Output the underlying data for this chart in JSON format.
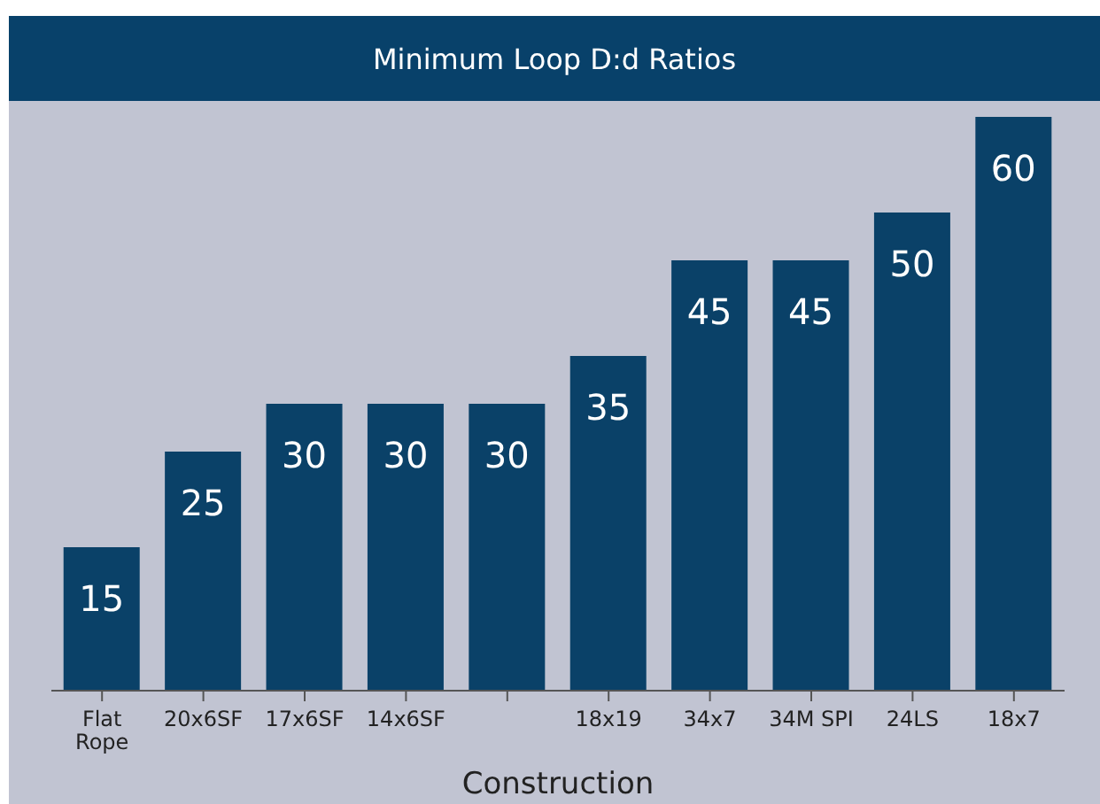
{
  "chart_data": {
    "type": "bar",
    "title": "Minimum Loop D:d Ratios",
    "xlabel": "Construction",
    "categories": [
      "Flat Rope",
      "20x6SF",
      "17x6SF",
      "14x6SF",
      null,
      "18x19",
      "34x7",
      "34M SPI",
      "24LS",
      "18x7"
    ],
    "values": [
      15,
      25,
      30,
      30,
      30,
      35,
      45,
      45,
      50,
      60
    ],
    "color": "#0a4168",
    "data_labels": true,
    "grid": false,
    "legend": false
  }
}
